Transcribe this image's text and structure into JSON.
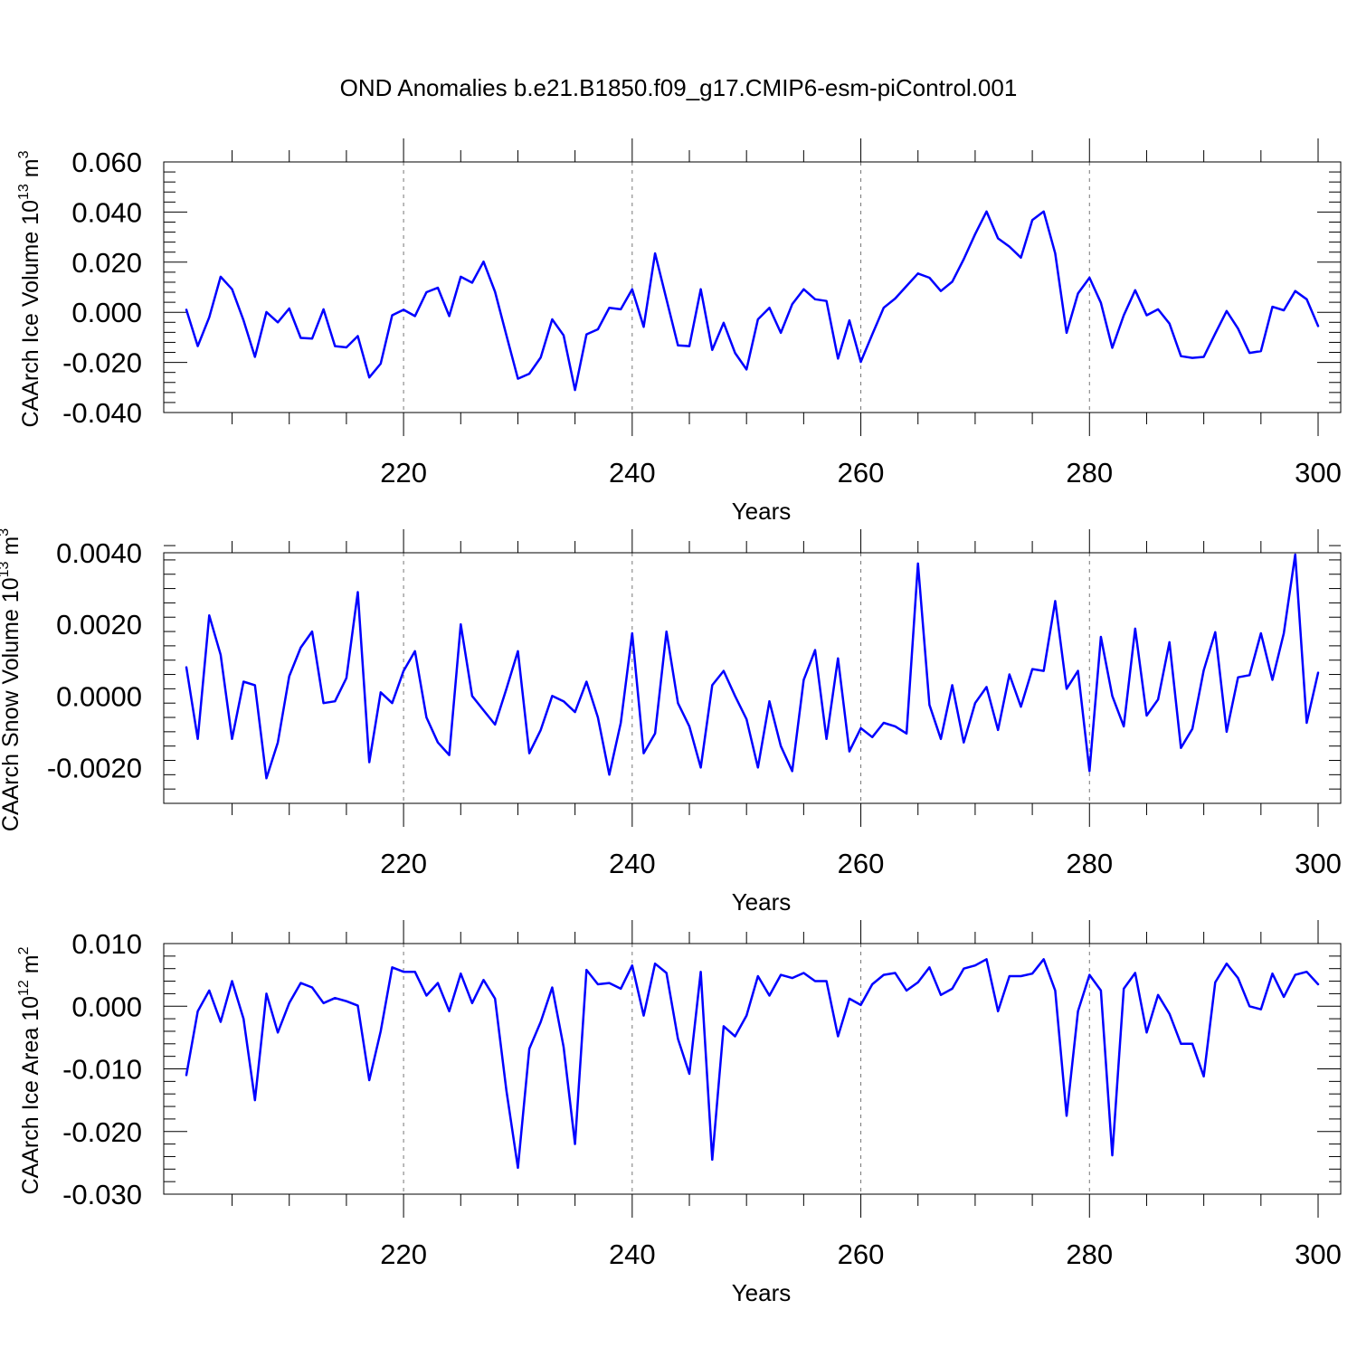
{
  "title": "OND Anomalies b.e21.B1850.f09_g17.CMIP6-esm-piControl.001",
  "line_color": "#0000ff",
  "chart_data": [
    {
      "type": "line",
      "name": "ice-volume",
      "ylabel": "CAArch Ice Volume 10",
      "ylabel_exp": "13",
      "ylabel_unit": " m",
      "ylabel_unit_exp": "3",
      "xlabel": "Years",
      "xlim": [
        201,
        300
      ],
      "ylim": [
        -0.04,
        0.06
      ],
      "major_x": [
        220,
        240,
        260,
        280,
        300
      ],
      "x_tick_labels": [
        "220",
        "240",
        "260",
        "280",
        "300"
      ],
      "y_ticks": [
        -0.04,
        -0.02,
        0.0,
        0.02,
        0.04,
        0.06
      ],
      "y_tick_labels": [
        "-0.040",
        "-0.020",
        "0.000",
        "0.020",
        "0.040",
        "0.060"
      ],
      "x_start": 201,
      "values": [
        0.001,
        -0.0135,
        -0.002,
        0.0142,
        0.0092,
        -0.0032,
        -0.0178,
        0.0001,
        -0.004,
        0.0015,
        -0.0102,
        -0.0105,
        0.0012,
        -0.0135,
        -0.014,
        -0.0095,
        -0.026,
        -0.0205,
        -0.0012,
        0.001,
        -0.0015,
        0.008,
        0.0098,
        -0.0015,
        0.0142,
        0.0118,
        0.0202,
        0.0082,
        -0.0092,
        -0.0265,
        -0.0245,
        -0.018,
        -0.0028,
        -0.0092,
        -0.031,
        -0.0088,
        -0.0068,
        0.0018,
        0.0012,
        0.0092,
        -0.0058,
        0.0235,
        0.0052,
        -0.0132,
        -0.0135,
        0.0092,
        -0.015,
        -0.0042,
        -0.0162,
        -0.0228,
        -0.0028,
        0.0018,
        -0.0082,
        0.0032,
        0.0092,
        0.0052,
        0.0045,
        -0.0185,
        -0.0032,
        -0.0198,
        -0.0088,
        0.0018,
        0.0055,
        0.0105,
        0.0155,
        0.0138,
        0.0085,
        0.0122,
        0.0212,
        0.0312,
        0.0402,
        0.0295,
        0.0262,
        0.0218,
        0.0368,
        0.0402,
        0.0235,
        -0.0082,
        0.0075,
        0.0138,
        0.0038,
        -0.0142,
        -0.0012,
        0.0088,
        -0.0012,
        0.0012,
        -0.0045,
        -0.0175,
        -0.0182,
        -0.0178,
        -0.0085,
        0.0005,
        -0.0065,
        -0.0162,
        -0.0155,
        0.0022,
        0.0008,
        0.0085,
        0.0052,
        -0.0055
      ]
    },
    {
      "type": "line",
      "name": "snow-volume",
      "ylabel": "CAArch Snow Volume 10",
      "ylabel_exp": "13",
      "ylabel_unit": " m",
      "ylabel_unit_exp": "3",
      "xlabel": "Years",
      "xlim": [
        201,
        300
      ],
      "ylim": [
        -0.003,
        0.004
      ],
      "major_x": [
        220,
        240,
        260,
        280,
        300
      ],
      "x_tick_labels": [
        "220",
        "240",
        "260",
        "280",
        "300"
      ],
      "y_ticks": [
        -0.002,
        0.0,
        0.002,
        0.004
      ],
      "y_tick_labels": [
        "-0.0020",
        "0.0000",
        "0.0020",
        "0.0040"
      ],
      "x_start": 201,
      "values": [
        0.0008,
        -0.0012,
        0.00225,
        0.00115,
        -0.0012,
        0.0004,
        0.0003,
        -0.0023,
        -0.0013,
        0.00055,
        0.00135,
        0.0018,
        -0.0002,
        -0.00015,
        0.0005,
        0.0029,
        -0.00185,
        0.0001,
        -0.0002,
        0.0007,
        0.00125,
        -0.0006,
        -0.0013,
        -0.00165,
        0.002,
        0.0,
        -0.0004,
        -0.0008,
        0.0002,
        0.00125,
        -0.0016,
        -0.00095,
        0.0,
        -0.00015,
        -0.00045,
        0.0004,
        -0.0006,
        -0.0022,
        -0.00075,
        0.00175,
        -0.0016,
        -0.00105,
        0.0018,
        -0.0002,
        -0.00085,
        -0.002,
        0.0003,
        0.0007,
        0.0,
        -0.00065,
        -0.002,
        -0.00015,
        -0.0014,
        -0.0021,
        0.00045,
        0.00128,
        -0.0012,
        0.00105,
        -0.00155,
        -0.0009,
        -0.00115,
        -0.00075,
        -0.00085,
        -0.00105,
        0.0037,
        -0.00025,
        -0.0012,
        0.0003,
        -0.0013,
        -0.0002,
        0.00025,
        -0.00095,
        0.0006,
        -0.0003,
        0.00075,
        0.0007,
        0.00265,
        0.0002,
        0.0007,
        -0.0021,
        0.00165,
        0.0,
        -0.00085,
        0.00188,
        -0.00055,
        -0.0001,
        0.0015,
        -0.00145,
        -0.00092,
        0.00072,
        0.00178,
        -0.001,
        0.00052,
        0.00058,
        0.00175,
        0.00045,
        0.00175,
        0.00395,
        -0.00075,
        0.00065
      ]
    },
    {
      "type": "line",
      "name": "ice-area",
      "ylabel": "CAArch Ice Area 10",
      "ylabel_exp": "12",
      "ylabel_unit": " m",
      "ylabel_unit_exp": "2",
      "xlabel": "Years",
      "xlim": [
        201,
        300
      ],
      "ylim": [
        -0.03,
        0.01
      ],
      "major_x": [
        220,
        240,
        260,
        280,
        300
      ],
      "x_tick_labels": [
        "220",
        "240",
        "260",
        "280",
        "300"
      ],
      "y_ticks": [
        -0.03,
        -0.02,
        -0.01,
        0.0,
        0.01
      ],
      "y_tick_labels": [
        "-0.030",
        "-0.020",
        "-0.010",
        "0.000",
        "0.010"
      ],
      "x_start": 201,
      "values": [
        -0.011,
        -0.0008,
        0.0025,
        -0.0025,
        0.004,
        -0.002,
        -0.015,
        0.002,
        -0.0042,
        0.0005,
        0.0037,
        0.003,
        0.0005,
        0.0013,
        0.0008,
        0.0001,
        -0.0118,
        -0.004,
        0.0062,
        0.0055,
        0.0055,
        0.0017,
        0.0037,
        -0.0008,
        0.0052,
        0.0005,
        0.0042,
        0.0012,
        -0.0135,
        -0.0258,
        -0.0068,
        -0.0025,
        0.003,
        -0.0065,
        -0.022,
        0.0058,
        0.0035,
        0.0037,
        0.0028,
        0.0065,
        -0.0015,
        0.0068,
        0.0053,
        -0.0052,
        -0.0108,
        0.0055,
        -0.0245,
        -0.0032,
        -0.0048,
        -0.0015,
        0.0048,
        0.0017,
        0.005,
        0.0045,
        0.0053,
        0.004,
        0.004,
        -0.0048,
        0.0012,
        0.0002,
        0.0035,
        0.005,
        0.0053,
        0.0025,
        0.0038,
        0.0062,
        0.0018,
        0.0028,
        0.006,
        0.0065,
        0.0075,
        -0.0008,
        0.0048,
        0.0048,
        0.0052,
        0.0075,
        0.0025,
        -0.0175,
        -0.0008,
        0.005,
        0.0025,
        -0.0238,
        0.0028,
        0.0053,
        -0.0042,
        0.0018,
        -0.0012,
        -0.006,
        -0.006,
        -0.0112,
        0.0038,
        0.0068,
        0.0045,
        0.0,
        -0.0005,
        0.0052,
        0.0015,
        0.005,
        0.0055,
        0.0035
      ]
    }
  ]
}
